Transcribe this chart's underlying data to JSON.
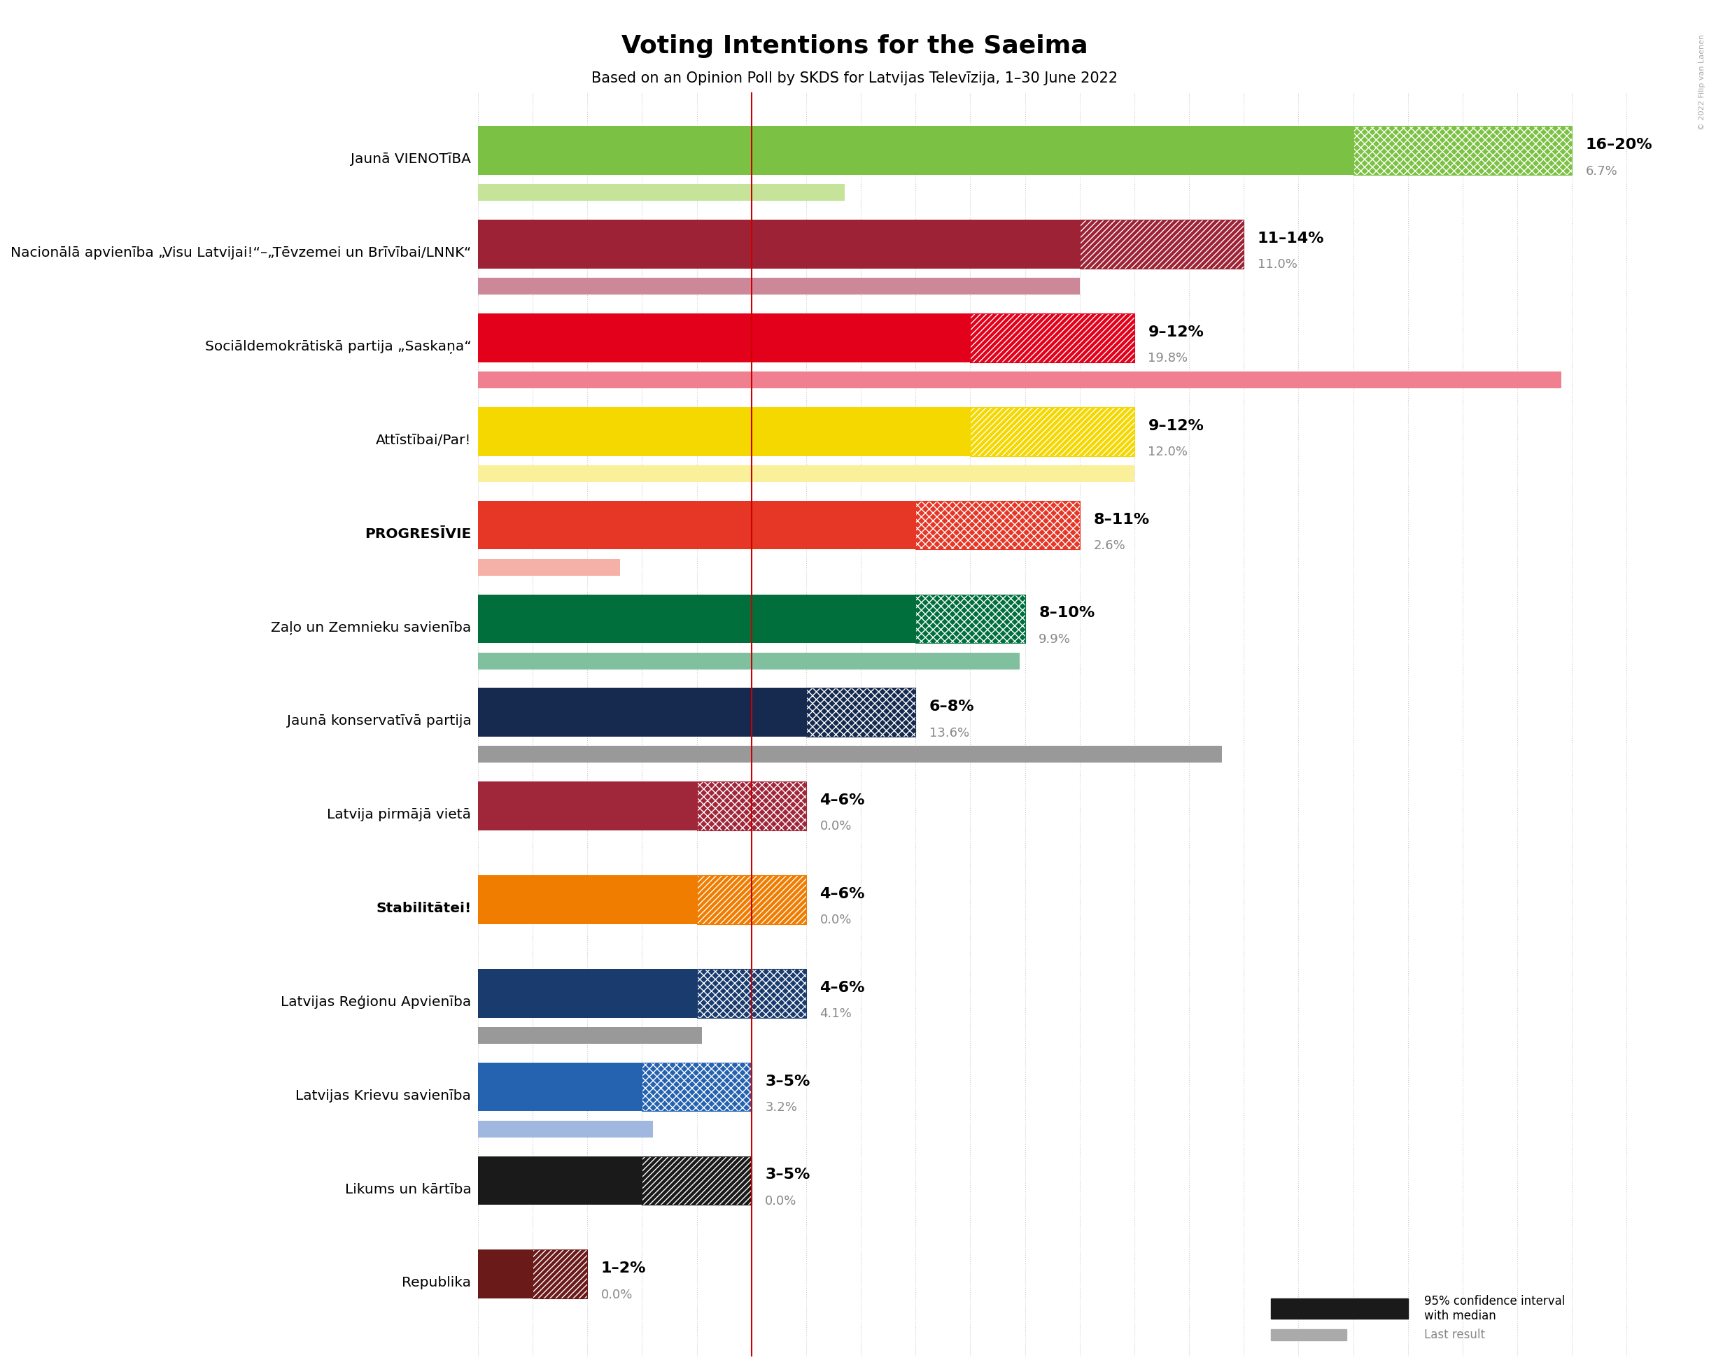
{
  "title": "Voting Intentions for the Saeima",
  "subtitle": "Based on an Opinion Poll by SKDS for Latvijas Televīzija, 1–30 June 2022",
  "copyright": "© 2022 Filip van Laenen",
  "parties": [
    {
      "name": "Jaunā VIENOTīBA",
      "ci_low": 16,
      "ci_high": 20,
      "last_result": 6.7,
      "color": "#7bc143",
      "last_color": "#c5e49a",
      "label": "16–20%",
      "last_label": "6.7%",
      "bold": false,
      "hatch": "xxx"
    },
    {
      "name": "Nacionālā apvienība „Visu Latvijai!“–„Tēvzemei un Brīvībai/LNNK“",
      "ci_low": 11,
      "ci_high": 14,
      "last_result": 11.0,
      "color": "#9d2235",
      "last_color": "#cc8899",
      "label": "11–14%",
      "last_label": "11.0%",
      "bold": false,
      "hatch": "////"
    },
    {
      "name": "Sociāldemokrātiskā partija „Saskaņa“",
      "ci_low": 9,
      "ci_high": 12,
      "last_result": 19.8,
      "color": "#e2001a",
      "last_color": "#f08090",
      "label": "9–12%",
      "last_label": "19.8%",
      "bold": false,
      "hatch": "////"
    },
    {
      "name": "Attīstībai/Par!",
      "ci_low": 9,
      "ci_high": 12,
      "last_result": 12.0,
      "color": "#f5d800",
      "last_color": "#faf099",
      "label": "9–12%",
      "last_label": "12.0%",
      "bold": false,
      "hatch": "////"
    },
    {
      "name": "PROGRESĪVIE",
      "ci_low": 8,
      "ci_high": 11,
      "last_result": 2.6,
      "color": "#e63625",
      "last_color": "#f5b0a8",
      "label": "8–11%",
      "last_label": "2.6%",
      "bold": true,
      "hatch": "xxx"
    },
    {
      "name": "Zaļo un Zemnieku savienība",
      "ci_low": 8,
      "ci_high": 10,
      "last_result": 9.9,
      "color": "#006f3c",
      "last_color": "#80c09e",
      "label": "8–10%",
      "last_label": "9.9%",
      "bold": false,
      "hatch": "xxx"
    },
    {
      "name": "Jaunā konservatīvā partija",
      "ci_low": 6,
      "ci_high": 8,
      "last_result": 13.6,
      "color": "#152a4e",
      "last_color": "#999999",
      "label": "6–8%",
      "last_label": "13.6%",
      "bold": false,
      "hatch": "xxx"
    },
    {
      "name": "Latvija pirmājā vietā",
      "ci_low": 4,
      "ci_high": 6,
      "last_result": 0.0,
      "color": "#a0263a",
      "last_color": "#cc8899",
      "label": "4–6%",
      "last_label": "0.0%",
      "bold": false,
      "hatch": "xxx"
    },
    {
      "name": "Stabilitātei!",
      "ci_low": 4,
      "ci_high": 6,
      "last_result": 0.0,
      "color": "#f07d00",
      "last_color": "#f8c080",
      "label": "4–6%",
      "last_label": "0.0%",
      "bold": true,
      "hatch": "////"
    },
    {
      "name": "Latvijas Reģionu Apvienība",
      "ci_low": 4,
      "ci_high": 6,
      "last_result": 4.1,
      "color": "#1a3b6e",
      "last_color": "#999999",
      "label": "4–6%",
      "last_label": "4.1%",
      "bold": false,
      "hatch": "xxx"
    },
    {
      "name": "Latvijas Krievu savienība",
      "ci_low": 3,
      "ci_high": 5,
      "last_result": 3.2,
      "color": "#2563b0",
      "last_color": "#a0b8e0",
      "label": "3–5%",
      "last_label": "3.2%",
      "bold": false,
      "hatch": "xxx"
    },
    {
      "name": "Likums un kārtība",
      "ci_low": 3,
      "ci_high": 5,
      "last_result": 0.0,
      "color": "#1a1a1a",
      "last_color": "#888888",
      "label": "3–5%",
      "last_label": "0.0%",
      "bold": false,
      "hatch": "////"
    },
    {
      "name": "Republika",
      "ci_low": 1,
      "ci_high": 2,
      "last_result": 0.0,
      "color": "#6b1a1a",
      "last_color": "#aa7070",
      "label": "1–2%",
      "last_label": "0.0%",
      "bold": false,
      "hatch": "////"
    }
  ],
  "xlim": [
    0,
    22
  ],
  "threshold_line": 5,
  "grid_minor_color": "#cccccc",
  "background_color": "#ffffff"
}
